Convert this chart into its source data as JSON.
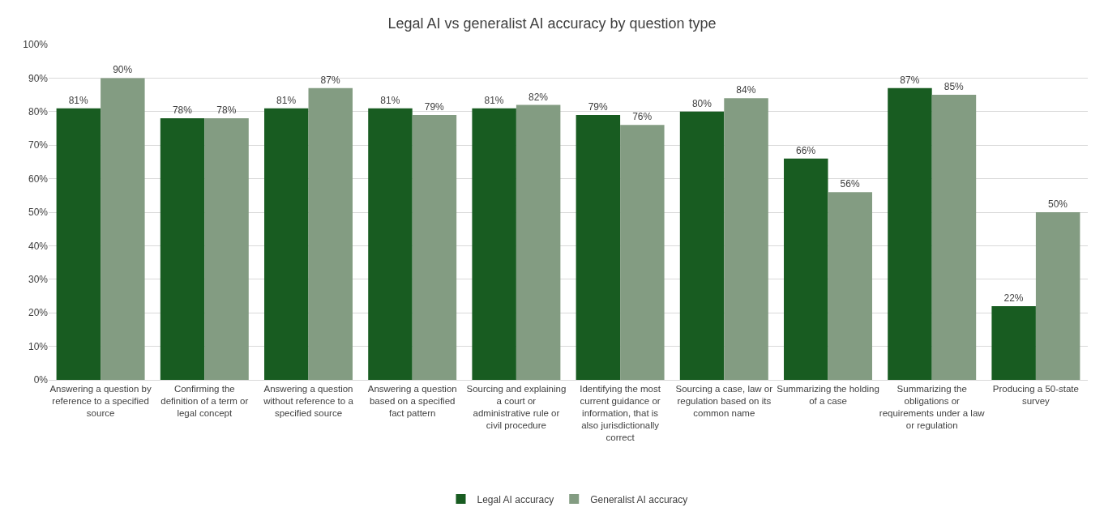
{
  "chart_data": {
    "type": "bar",
    "title": "Legal AI vs generalist AI accuracy by question type",
    "categories": [
      "Answering a question by reference to a specified source",
      "Confirming the definition of a term or legal concept",
      "Answering a question without reference to a specified source",
      "Answering a question based on a specified fact pattern",
      "Sourcing and explaining a court or administrative rule or civil procedure",
      "Identifying the most current guidance or information, that is also jurisdictionally correct",
      "Sourcing a case, law or regulation based on its common name",
      "Summarizing the holding of a case",
      "Summarizing the obligations or requirements under a law or regulation",
      "Producing a 50-state survey"
    ],
    "series": [
      {
        "name": "Legal AI accuracy",
        "color": "#185c21",
        "values": [
          81,
          78,
          81,
          81,
          81,
          79,
          80,
          66,
          87,
          22
        ],
        "value_labels": [
          "81%",
          "78%",
          "81%",
          "81%",
          "81%",
          "79%",
          "80%",
          "66%",
          "87%",
          "22%"
        ]
      },
      {
        "name": "Generalist AI accuracy",
        "color": "#839c82",
        "values": [
          90,
          78,
          87,
          79,
          82,
          76,
          84,
          56,
          85,
          50
        ],
        "value_labels": [
          "90%",
          "78%",
          "87%",
          "79%",
          "82%",
          "76%",
          "84%",
          "56%",
          "85%",
          "50%"
        ]
      }
    ],
    "ylim": [
      0,
      100
    ],
    "yticks": [
      {
        "value": 0,
        "label": "0%"
      },
      {
        "value": 10,
        "label": "10%"
      },
      {
        "value": 20,
        "label": "20%"
      },
      {
        "value": 30,
        "label": "30%"
      },
      {
        "value": 40,
        "label": "40%"
      },
      {
        "value": 50,
        "label": "50%"
      },
      {
        "value": 60,
        "label": "60%"
      },
      {
        "value": 70,
        "label": "70%"
      },
      {
        "value": 80,
        "label": "80%"
      },
      {
        "value": 90,
        "label": "90%"
      },
      {
        "value": 100,
        "label": "100%"
      }
    ],
    "grid": "y",
    "legend": "bottom"
  }
}
